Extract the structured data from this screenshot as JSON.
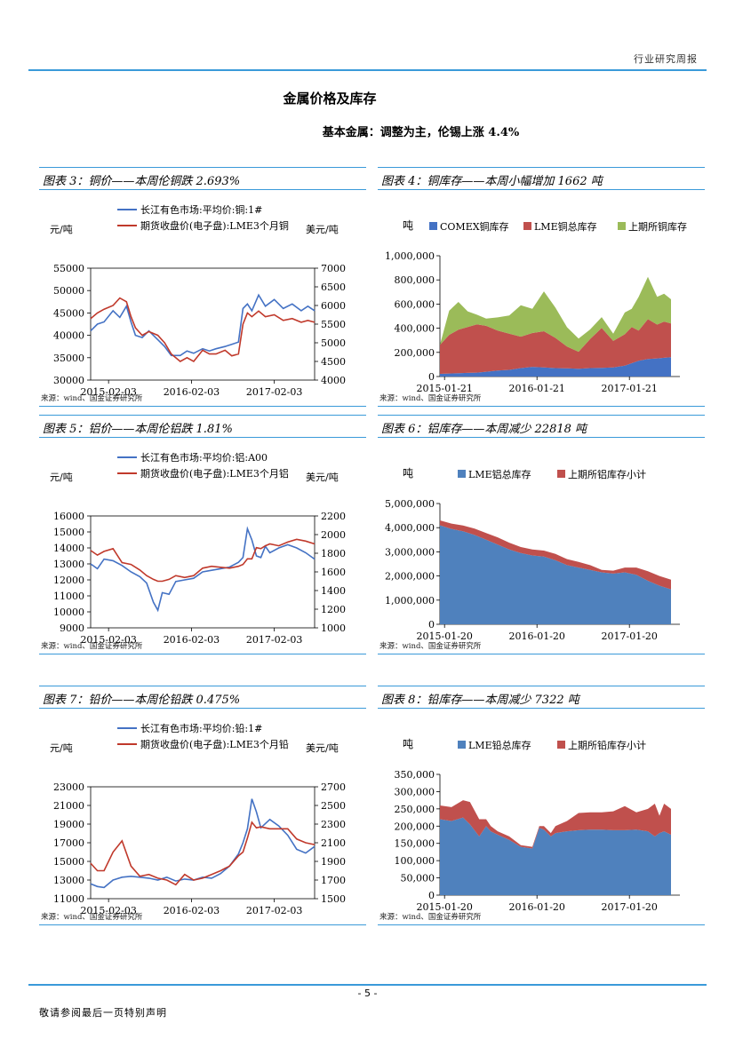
{
  "header": {
    "report_type": "行业研究周报"
  },
  "section": {
    "title": "金属价格及库存",
    "subtitle": "基本金属：调整为主，伦锡上涨 4.4%"
  },
  "footer": {
    "page": "- 5 -",
    "note": "敬请参阅最后一页特别声明"
  },
  "panels": [
    {
      "title": "图表 3：铜价——本周伦铜跌 2.693%",
      "source": "来源：wind、国金证券研究所"
    },
    {
      "title": "图表 4：铜库存——本周小幅增加 1662 吨",
      "source": "来源：wind、国金证券研究所"
    },
    {
      "title": "图表 5：铝价——本周伦铝跌 1.81%",
      "source": "来源：wind、国金证券研究所"
    },
    {
      "title": "图表 6：铝库存——本周减少 22818 吨",
      "source": "来源：wind、国金证券研究所"
    },
    {
      "title": "图表 7：铅价——本周伦铅跌 0.475%",
      "source": "来源：wind、国金证券研究所"
    },
    {
      "title": "图表 8：铅库存——本周减少 7322 吨",
      "source": "来源：wind、国金证券研究所"
    }
  ],
  "chart_data": [
    {
      "id": "copper-price",
      "type": "line",
      "left_unit": "元/吨",
      "right_unit": "美元/吨",
      "x_ticks": [
        "2015-02-03",
        "2016-02-03",
        "2017-02-03"
      ],
      "left_ylim": [
        30000,
        55000
      ],
      "left_ticks": [
        "30000",
        "35000",
        "40000",
        "45000",
        "50000",
        "55000"
      ],
      "right_ylim": [
        4000,
        7000
      ],
      "right_ticks": [
        "4000",
        "4500",
        "5000",
        "5500",
        "6000",
        "6500",
        "7000"
      ],
      "series": [
        {
          "name": "长江有色市场:平均价:铜:1#",
          "color": "#4472c4",
          "axis": "left",
          "x": [
            0,
            0.03,
            0.06,
            0.1,
            0.13,
            0.16,
            0.18,
            0.2,
            0.23,
            0.26,
            0.3,
            0.33,
            0.36,
            0.4,
            0.43,
            0.46,
            0.5,
            0.53,
            0.56,
            0.6,
            0.63,
            0.66,
            0.68,
            0.7,
            0.72,
            0.75,
            0.78,
            0.82,
            0.86,
            0.9,
            0.94,
            0.97,
            1.0
          ],
          "values": [
            41000,
            42500,
            43000,
            45500,
            44000,
            46500,
            43000,
            40000,
            39500,
            41000,
            39000,
            37500,
            35500,
            35500,
            36500,
            36000,
            37000,
            36500,
            37000,
            37500,
            38000,
            38500,
            46000,
            47000,
            45500,
            49000,
            46500,
            48000,
            46000,
            47000,
            45500,
            46500,
            45500
          ]
        },
        {
          "name": "期货收盘价(电子盘):LME3个月铜",
          "color": "#c0392b",
          "axis": "right",
          "x": [
            0,
            0.03,
            0.06,
            0.1,
            0.13,
            0.16,
            0.18,
            0.2,
            0.23,
            0.26,
            0.3,
            0.33,
            0.36,
            0.4,
            0.43,
            0.46,
            0.5,
            0.53,
            0.56,
            0.6,
            0.63,
            0.66,
            0.68,
            0.7,
            0.72,
            0.75,
            0.78,
            0.82,
            0.86,
            0.9,
            0.94,
            0.97,
            1.0
          ],
          "values": [
            5650,
            5800,
            5900,
            6000,
            6200,
            6100,
            5700,
            5400,
            5200,
            5300,
            5200,
            5000,
            4700,
            4500,
            4600,
            4500,
            4800,
            4700,
            4700,
            4800,
            4650,
            4700,
            5500,
            5800,
            5700,
            5850,
            5700,
            5750,
            5600,
            5650,
            5550,
            5600,
            5550
          ]
        }
      ]
    },
    {
      "id": "copper-inventory",
      "type": "area",
      "unit": "吨",
      "x_ticks": [
        "2015-01-21",
        "2016-01-21",
        "2017-01-21"
      ],
      "ylim": [
        0,
        1000000
      ],
      "y_ticks": [
        "0",
        "200,000",
        "400,000",
        "600,000",
        "800,000",
        "1,000,000"
      ],
      "x": [
        0,
        0.04,
        0.08,
        0.12,
        0.16,
        0.2,
        0.25,
        0.3,
        0.35,
        0.4,
        0.45,
        0.5,
        0.55,
        0.6,
        0.65,
        0.7,
        0.75,
        0.8,
        0.83,
        0.86,
        0.9,
        0.94,
        0.97,
        1.0
      ],
      "series": [
        {
          "name": "COMEX铜库存",
          "color": "#4472c4",
          "values": [
            22000,
            25000,
            28000,
            30000,
            32000,
            40000,
            50000,
            55000,
            70000,
            80000,
            75000,
            70000,
            68000,
            65000,
            70000,
            72000,
            75000,
            90000,
            110000,
            130000,
            145000,
            150000,
            155000,
            160000
          ]
        },
        {
          "name": "LME铜总库存",
          "color": "#c0504d",
          "values": [
            240000,
            320000,
            360000,
            380000,
            400000,
            380000,
            330000,
            300000,
            260000,
            280000,
            300000,
            250000,
            180000,
            140000,
            240000,
            330000,
            220000,
            260000,
            300000,
            250000,
            330000,
            280000,
            300000,
            280000
          ]
        },
        {
          "name": "上期所铜库存",
          "color": "#9bbb59",
          "values": [
            0,
            200000,
            230000,
            130000,
            80000,
            60000,
            110000,
            150000,
            260000,
            200000,
            330000,
            250000,
            160000,
            110000,
            80000,
            90000,
            60000,
            180000,
            150000,
            280000,
            350000,
            230000,
            230000,
            200000
          ]
        }
      ]
    },
    {
      "id": "aluminum-price",
      "type": "line",
      "left_unit": "元/吨",
      "right_unit": "美元/吨",
      "x_ticks": [
        "2015-02-03",
        "2016-02-03",
        "2017-02-03"
      ],
      "left_ylim": [
        9000,
        16000
      ],
      "left_ticks": [
        "9000",
        "10000",
        "11000",
        "12000",
        "13000",
        "14000",
        "15000",
        "16000"
      ],
      "right_ylim": [
        1000,
        2200
      ],
      "right_ticks": [
        "1000",
        "1200",
        "1400",
        "1600",
        "1800",
        "2000",
        "2200"
      ],
      "series": [
        {
          "name": "长江有色市场:平均价:铝:A00",
          "color": "#4472c4",
          "axis": "left",
          "x": [
            0,
            0.03,
            0.06,
            0.1,
            0.14,
            0.18,
            0.22,
            0.25,
            0.28,
            0.3,
            0.32,
            0.35,
            0.38,
            0.42,
            0.46,
            0.5,
            0.54,
            0.58,
            0.62,
            0.66,
            0.68,
            0.7,
            0.72,
            0.74,
            0.76,
            0.78,
            0.8,
            0.84,
            0.88,
            0.92,
            0.96,
            1.0
          ],
          "values": [
            13000,
            12700,
            13300,
            13200,
            12900,
            12500,
            12200,
            11800,
            10600,
            10100,
            11200,
            11100,
            11900,
            12000,
            12100,
            12500,
            12600,
            12700,
            12800,
            13100,
            13400,
            15200,
            14500,
            13500,
            13400,
            14100,
            13700,
            14000,
            14200,
            14000,
            13700,
            13300
          ]
        },
        {
          "name": "期货收盘价(电子盘):LME3个月铝",
          "color": "#c0392b",
          "axis": "right",
          "x": [
            0,
            0.03,
            0.06,
            0.1,
            0.14,
            0.18,
            0.22,
            0.25,
            0.28,
            0.3,
            0.32,
            0.35,
            0.38,
            0.42,
            0.46,
            0.5,
            0.54,
            0.58,
            0.62,
            0.66,
            0.68,
            0.7,
            0.72,
            0.74,
            0.76,
            0.78,
            0.8,
            0.84,
            0.88,
            0.92,
            0.96,
            1.0
          ],
          "values": [
            1830,
            1780,
            1820,
            1850,
            1700,
            1680,
            1620,
            1560,
            1520,
            1500,
            1500,
            1520,
            1560,
            1540,
            1560,
            1640,
            1660,
            1650,
            1640,
            1660,
            1680,
            1740,
            1740,
            1860,
            1850,
            1880,
            1900,
            1880,
            1920,
            1950,
            1930,
            1900
          ]
        }
      ]
    },
    {
      "id": "aluminum-inventory",
      "type": "area",
      "unit": "吨",
      "x_ticks": [
        "2015-01-20",
        "2016-01-20",
        "2017-01-20"
      ],
      "ylim": [
        0,
        5000000
      ],
      "y_ticks": [
        "0",
        "1,000,000",
        "2,000,000",
        "3,000,000",
        "4,000,000",
        "5,000,000"
      ],
      "x": [
        0,
        0.05,
        0.1,
        0.15,
        0.2,
        0.25,
        0.3,
        0.35,
        0.4,
        0.45,
        0.5,
        0.55,
        0.6,
        0.65,
        0.7,
        0.75,
        0.8,
        0.85,
        0.9,
        0.95,
        1.0
      ],
      "series": [
        {
          "name": "LME铝总库存",
          "color": "#4f81bd",
          "values": [
            4100000,
            3950000,
            3850000,
            3700000,
            3500000,
            3300000,
            3100000,
            2950000,
            2850000,
            2800000,
            2650000,
            2450000,
            2350000,
            2250000,
            2150000,
            2100000,
            2150000,
            2050000,
            1800000,
            1600000,
            1450000
          ]
        },
        {
          "name": "上期所铝库存小计",
          "color": "#c0504d",
          "values": [
            200000,
            220000,
            240000,
            260000,
            280000,
            300000,
            280000,
            250000,
            250000,
            250000,
            260000,
            250000,
            230000,
            200000,
            100000,
            120000,
            200000,
            300000,
            400000,
            400000,
            400000
          ]
        }
      ]
    },
    {
      "id": "lead-price",
      "type": "line",
      "left_unit": "元/吨",
      "right_unit": "美元/吨",
      "x_ticks": [
        "2015-02-03",
        "2016-02-03",
        "2017-02-03"
      ],
      "left_ylim": [
        11000,
        23000
      ],
      "left_ticks": [
        "11000",
        "13000",
        "15000",
        "17000",
        "19000",
        "21000",
        "23000"
      ],
      "right_ylim": [
        1500,
        2700
      ],
      "right_ticks": [
        "1500",
        "1700",
        "1900",
        "2100",
        "2300",
        "2500",
        "2700"
      ],
      "series": [
        {
          "name": "长江有色市场:平均价:铅:1#",
          "color": "#4472c4",
          "axis": "left",
          "x": [
            0,
            0.03,
            0.06,
            0.1,
            0.14,
            0.18,
            0.22,
            0.26,
            0.3,
            0.34,
            0.38,
            0.42,
            0.46,
            0.5,
            0.54,
            0.58,
            0.62,
            0.66,
            0.68,
            0.7,
            0.72,
            0.74,
            0.76,
            0.8,
            0.84,
            0.88,
            0.92,
            0.96,
            1.0
          ],
          "values": [
            12600,
            12300,
            12200,
            13000,
            13300,
            13400,
            13300,
            13200,
            13000,
            13300,
            12900,
            13100,
            13000,
            13300,
            13200,
            13700,
            14500,
            15800,
            17000,
            18500,
            21700,
            20300,
            18600,
            19500,
            18800,
            17800,
            16300,
            15900,
            16600
          ]
        },
        {
          "name": "期货收盘价(电子盘):LME3个月铅",
          "color": "#c0392b",
          "axis": "right",
          "x": [
            0,
            0.03,
            0.06,
            0.1,
            0.14,
            0.18,
            0.22,
            0.26,
            0.3,
            0.34,
            0.38,
            0.42,
            0.46,
            0.5,
            0.54,
            0.58,
            0.62,
            0.66,
            0.68,
            0.7,
            0.72,
            0.74,
            0.76,
            0.8,
            0.84,
            0.88,
            0.92,
            0.96,
            1.0
          ],
          "values": [
            1880,
            1800,
            1800,
            2000,
            2120,
            1850,
            1740,
            1760,
            1720,
            1700,
            1650,
            1760,
            1700,
            1720,
            1760,
            1800,
            1850,
            1960,
            2000,
            2150,
            2320,
            2260,
            2270,
            2250,
            2250,
            2250,
            2140,
            2100,
            2080
          ]
        }
      ]
    },
    {
      "id": "lead-inventory",
      "type": "area",
      "unit": "吨",
      "x_ticks": [
        "2015-01-20",
        "2016-01-20",
        "2017-01-20"
      ],
      "ylim": [
        0,
        350000
      ],
      "y_ticks": [
        "0",
        "50,000",
        "100,000",
        "150,000",
        "200,000",
        "250,000",
        "300,000",
        "350,000"
      ],
      "x": [
        0,
        0.05,
        0.1,
        0.13,
        0.17,
        0.2,
        0.22,
        0.25,
        0.3,
        0.35,
        0.4,
        0.43,
        0.45,
        0.48,
        0.5,
        0.55,
        0.6,
        0.65,
        0.7,
        0.75,
        0.8,
        0.85,
        0.9,
        0.93,
        0.95,
        0.97,
        1.0
      ],
      "series": [
        {
          "name": "LME铅总库存",
          "color": "#4f81bd",
          "values": [
            220000,
            215000,
            225000,
            205000,
            170000,
            200000,
            185000,
            175000,
            160000,
            140000,
            135000,
            195000,
            190000,
            170000,
            180000,
            185000,
            188000,
            190000,
            190000,
            188000,
            188000,
            190000,
            185000,
            170000,
            180000,
            185000,
            175000
          ]
        },
        {
          "name": "上期所铅库存小计",
          "color": "#c0504d",
          "values": [
            40000,
            40000,
            50000,
            65000,
            50000,
            20000,
            15000,
            10000,
            10000,
            5000,
            5000,
            5000,
            10000,
            10000,
            20000,
            30000,
            50000,
            50000,
            50000,
            55000,
            70000,
            50000,
            65000,
            95000,
            50000,
            80000,
            75000
          ]
        }
      ]
    }
  ]
}
